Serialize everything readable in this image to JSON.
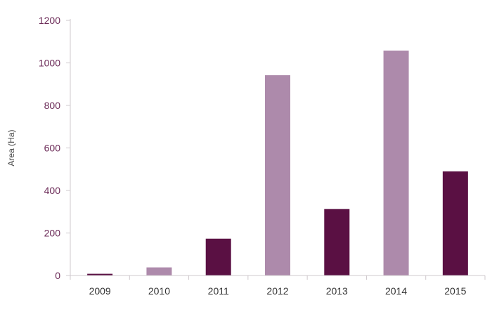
{
  "chart_data": {
    "type": "bar",
    "categories": [
      "2009",
      "2010",
      "2011",
      "2012",
      "2013",
      "2014",
      "2015"
    ],
    "values": [
      8,
      38,
      173,
      942,
      313,
      1058,
      490
    ],
    "bar_colors": [
      "#5a1043",
      "#ad8aab",
      "#5a1043",
      "#ad8aab",
      "#5a1043",
      "#ad8aab",
      "#5a1043"
    ],
    "title": "",
    "xlabel": "",
    "ylabel": "Area (Ha)",
    "ylim": [
      0,
      1200
    ],
    "yticks": [
      0,
      200,
      400,
      600,
      800,
      1000,
      1200
    ],
    "grid": false,
    "colors": {
      "axis": "#cfc9cd",
      "y_tick_text": "#6b2a57",
      "x_tick_text": "#333333",
      "ylabel_text": "#444444"
    }
  }
}
